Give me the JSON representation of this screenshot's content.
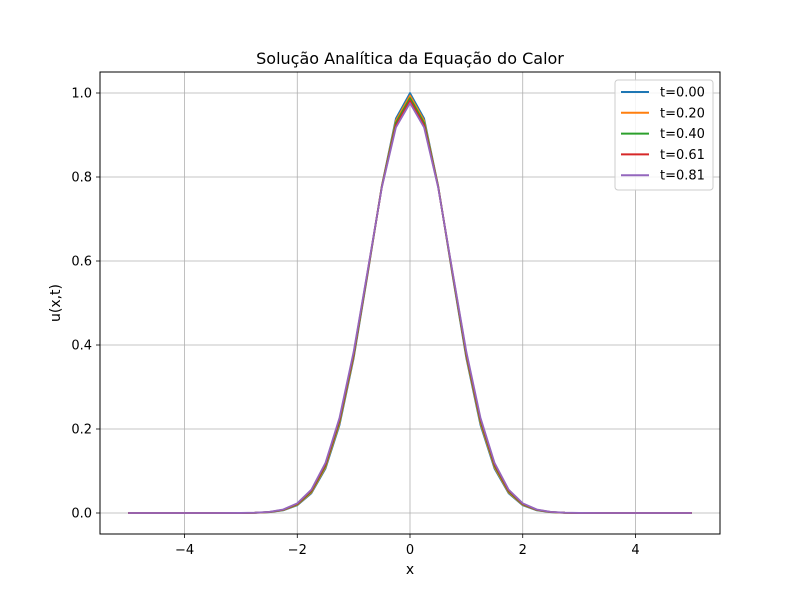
{
  "chart_data": {
    "type": "line",
    "title": "Solução Analítica da Equação do Calor",
    "xlabel": "x",
    "ylabel": "u(x,t)",
    "xlim": [
      -5.5,
      5.5
    ],
    "ylim": [
      -0.05,
      1.05
    ],
    "xticks": [
      -4,
      -2,
      0,
      2,
      4
    ],
    "yticks": [
      0.0,
      0.2,
      0.4,
      0.6,
      0.8,
      1.0
    ],
    "xtick_labels": [
      "−4",
      "−2",
      "0",
      "2",
      "4"
    ],
    "ytick_labels": [
      "0.0",
      "0.2",
      "0.4",
      "0.6",
      "0.8",
      "1.0"
    ],
    "grid": true,
    "legend_position": "top-right",
    "x": [
      -5,
      -4.5,
      -4,
      -3.5,
      -3,
      -2.75,
      -2.5,
      -2.25,
      -2,
      -1.75,
      -1.5,
      -1.25,
      -1,
      -0.75,
      -0.5,
      -0.25,
      0,
      0.25,
      0.5,
      0.75,
      1,
      1.25,
      1.5,
      1.75,
      2,
      2.25,
      2.5,
      2.75,
      3,
      3.5,
      4,
      4.5,
      5
    ],
    "series": [
      {
        "name": "t=0.00",
        "color": "#1f77b4",
        "values": [
          0.0,
          0.0,
          0.0,
          0.0,
          0.0001,
          0.0005,
          0.0019,
          0.0063,
          0.0183,
          0.0468,
          0.1054,
          0.2096,
          0.3679,
          0.5698,
          0.7788,
          0.9394,
          1.0,
          0.9394,
          0.7788,
          0.5698,
          0.3679,
          0.2096,
          0.1054,
          0.0468,
          0.0183,
          0.0063,
          0.0019,
          0.0005,
          0.0001,
          0.0,
          0.0,
          0.0,
          0.0
        ]
      },
      {
        "name": "t=0.20",
        "color": "#ff7f0e",
        "values": [
          0.0,
          0.0,
          0.0,
          0.0,
          0.0001,
          0.0005,
          0.0021,
          0.0068,
          0.0195,
          0.049,
          0.1089,
          0.214,
          0.372,
          0.572,
          0.778,
          0.934,
          0.994,
          0.934,
          0.778,
          0.572,
          0.372,
          0.214,
          0.1089,
          0.049,
          0.0195,
          0.0068,
          0.0021,
          0.0005,
          0.0001,
          0.0,
          0.0,
          0.0,
          0.0
        ]
      },
      {
        "name": "t=0.40",
        "color": "#2ca02c",
        "values": [
          0.0,
          0.0,
          0.0,
          0.0,
          0.0001,
          0.0006,
          0.0022,
          0.0073,
          0.0207,
          0.0512,
          0.1124,
          0.2185,
          0.376,
          0.574,
          0.777,
          0.929,
          0.988,
          0.929,
          0.777,
          0.574,
          0.376,
          0.2185,
          0.1124,
          0.0512,
          0.0207,
          0.0073,
          0.0022,
          0.0006,
          0.0001,
          0.0,
          0.0,
          0.0,
          0.0
        ]
      },
      {
        "name": "t=0.61",
        "color": "#d62728",
        "values": [
          0.0,
          0.0,
          0.0,
          0.0,
          0.0001,
          0.0006,
          0.0024,
          0.0078,
          0.0219,
          0.0535,
          0.1159,
          0.2229,
          0.38,
          0.576,
          0.776,
          0.923,
          0.982,
          0.923,
          0.776,
          0.576,
          0.38,
          0.2229,
          0.1159,
          0.0535,
          0.0219,
          0.0078,
          0.0024,
          0.0006,
          0.0001,
          0.0,
          0.0,
          0.0,
          0.0
        ]
      },
      {
        "name": "t=0.81",
        "color": "#9467bd",
        "values": [
          0.0,
          0.0,
          0.0,
          0.0,
          0.0001,
          0.0007,
          0.0026,
          0.0083,
          0.0231,
          0.0557,
          0.1193,
          0.2272,
          0.384,
          0.578,
          0.775,
          0.918,
          0.976,
          0.918,
          0.775,
          0.578,
          0.384,
          0.2272,
          0.1193,
          0.0557,
          0.0231,
          0.0083,
          0.0026,
          0.0007,
          0.0001,
          0.0,
          0.0,
          0.0,
          0.0
        ]
      }
    ]
  }
}
